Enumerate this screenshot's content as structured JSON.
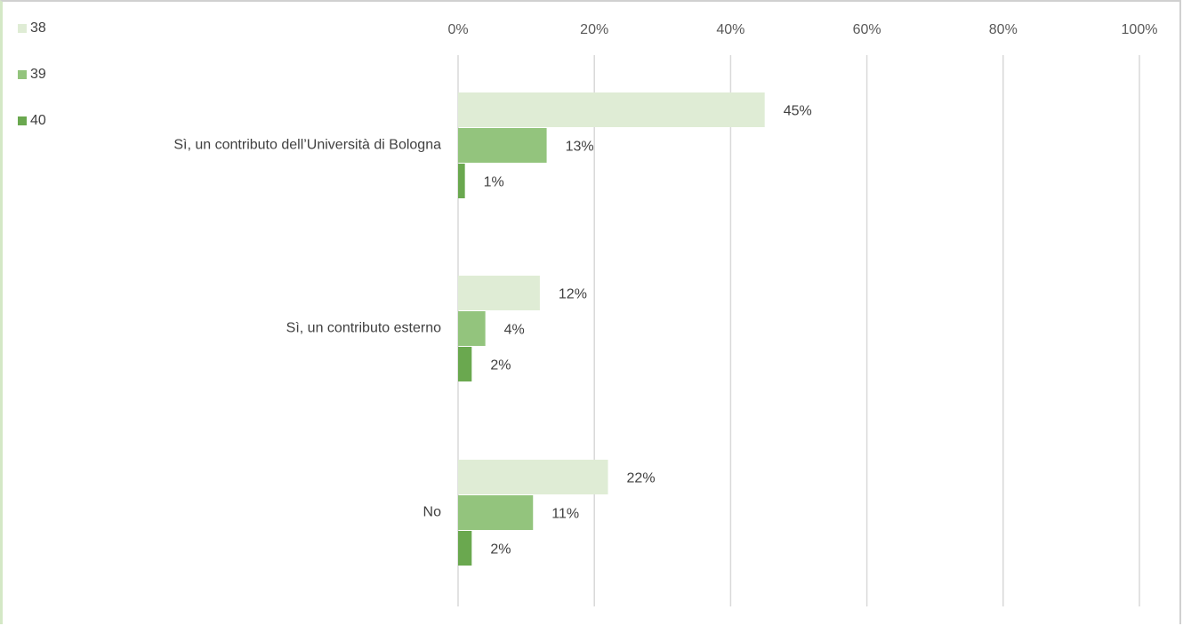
{
  "chart_data": {
    "type": "bar",
    "orientation": "horizontal",
    "categories": [
      "Sì, un contributo dell’Università di Bologna",
      "Sì, un contributo esterno",
      "No"
    ],
    "series": [
      {
        "name": "38",
        "values": [
          45,
          12,
          22
        ],
        "color": "#dfecd5"
      },
      {
        "name": "39",
        "values": [
          13,
          4,
          11
        ],
        "color": "#93c47d"
      },
      {
        "name": "40",
        "values": [
          1,
          2,
          2
        ],
        "color": "#6aa84f"
      }
    ],
    "xlim": [
      0,
      100
    ],
    "x_ticks": [
      0,
      20,
      40,
      60,
      80,
      100
    ],
    "tick_format": "{v}%",
    "value_format": "{v}%",
    "grid": true,
    "legend_position": "top-left",
    "title": "",
    "xlabel": "",
    "ylabel": ""
  }
}
